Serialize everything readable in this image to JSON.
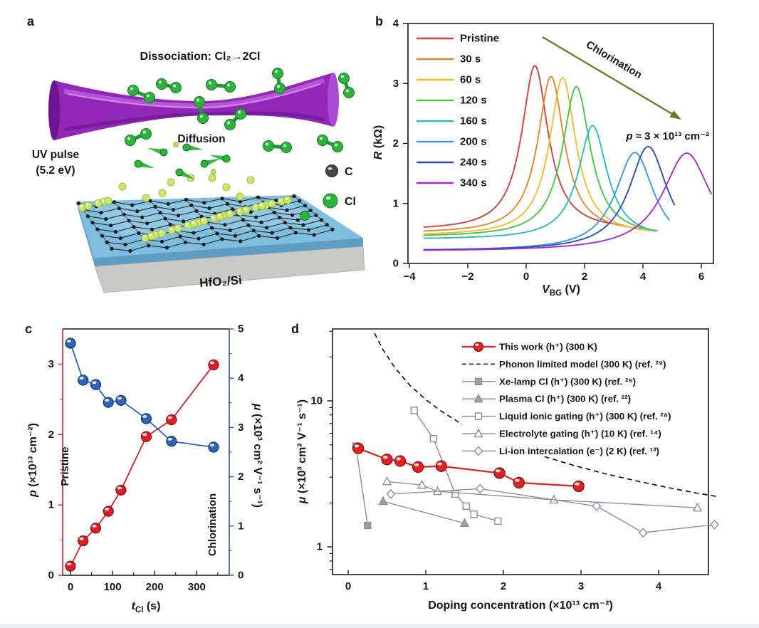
{
  "figure": {
    "background": "#ffffff",
    "ink_color": "#15151f",
    "panel_labels": {
      "a": "a",
      "b": "b",
      "c": "c",
      "d": "d"
    }
  },
  "panel_a": {
    "dissociation_label": "Dissociation: Cl₂→2Cl",
    "diffusion_label": "Diffusion",
    "uv_pulse_line1": "UV pulse",
    "uv_pulse_line2": "(5.2 eV)",
    "substrate_label": "HfO₂/Si",
    "legend": {
      "carbon": "C",
      "chlorine": "Cl"
    },
    "colors": {
      "beam": "#9227b8",
      "chlorine_green": "#2db33c",
      "adatom_green": "#cde76d",
      "substrate_blue": "#7fbede",
      "substrate_gray": "#c9c9c5"
    }
  },
  "chart_data": [
    {
      "panel": "b",
      "type": "line",
      "x_axis": {
        "label_parts": [
          {
            "t": "V",
            "i": 1
          },
          {
            "t": "BG",
            "sub": 1
          },
          {
            "t": " (V)"
          }
        ],
        "range": [
          -4,
          6.47
        ],
        "ticks": [
          -4,
          -2,
          0,
          2,
          4,
          6
        ]
      },
      "y_axis": {
        "label_parts": [
          {
            "t": "R",
            "i": 1
          },
          {
            "t": " (kΩ)"
          }
        ],
        "range": [
          0,
          4
        ],
        "ticks": [
          0,
          1,
          2,
          3,
          4
        ]
      },
      "series": [
        {
          "label": "Pristine",
          "color": "#d4403e",
          "v_dirac": 0.3,
          "r_peak": 3.3,
          "r_base": 0.55,
          "width": 0.55,
          "v_range": [
            -3.5,
            3.38
          ]
        },
        {
          "label": "30 s",
          "color": "#e8862b",
          "v_dirac": 0.85,
          "r_peak": 3.12,
          "r_base": 0.5,
          "width": 0.55,
          "v_range": [
            -3.5,
            3.97
          ]
        },
        {
          "label": "60 s",
          "color": "#f2bc35",
          "v_dirac": 1.25,
          "r_peak": 3.1,
          "r_base": 0.46,
          "width": 0.55,
          "v_range": [
            -3.5,
            4.3
          ]
        },
        {
          "label": "120 s",
          "color": "#47c83f",
          "v_dirac": 1.72,
          "r_peak": 2.95,
          "r_base": 0.44,
          "width": 0.58,
          "v_range": [
            -3.5,
            4.52
          ]
        },
        {
          "label": "160 s",
          "color": "#2fb9c4",
          "v_dirac": 2.28,
          "r_peak": 2.3,
          "r_base": 0.4,
          "width": 0.6,
          "v_range": [
            -3.5,
            4.45
          ]
        },
        {
          "label": "200 s",
          "color": "#3e97e0",
          "v_dirac": 3.72,
          "r_peak": 1.85,
          "r_base": 0.21,
          "width": 0.8,
          "v_range": [
            -3.5,
            4.95
          ]
        },
        {
          "label": "240 s",
          "color": "#2b50bd",
          "v_dirac": 4.18,
          "r_peak": 1.95,
          "r_base": 0.21,
          "width": 0.8,
          "v_range": [
            -3.5,
            5.1
          ]
        },
        {
          "label": "340 s",
          "color": "#a42cc8",
          "v_dirac": 5.5,
          "r_peak": 1.84,
          "r_base": 0.2,
          "width": 1.0,
          "v_range": [
            -3.5,
            6.35
          ]
        }
      ],
      "annotation_parts": [
        {
          "t": "p",
          "i": 1
        },
        {
          "t": " ≈ 3 × 10¹³ cm⁻²"
        }
      ],
      "arrow_label": "Chlorination",
      "arrow_color": "#5d7c20",
      "arrow_label_color": "#4fc3ab"
    },
    {
      "panel": "c",
      "type": "line",
      "x": [
        0,
        30,
        60,
        90,
        120,
        180,
        240,
        340
      ],
      "x_axis": {
        "label_parts": [
          {
            "t": "t",
            "i": 1
          },
          {
            "t": "Cl",
            "sub": 1
          },
          {
            "t": " (s)"
          }
        ],
        "range": [
          -19,
          378
        ],
        "ticks": [
          0,
          100,
          200,
          300
        ],
        "minor_ticks": [
          50,
          150,
          250,
          350
        ]
      },
      "left_axis": {
        "label_parts": [
          {
            "t": "p",
            "i": 1
          },
          {
            "t": " (×10¹³ cm⁻²)"
          }
        ],
        "range": [
          0,
          3.5
        ],
        "ticks": [
          0,
          1,
          2,
          3
        ],
        "color": "#c8202a"
      },
      "right_axis": {
        "label_parts": [
          {
            "t": "μ",
            "i": 1
          },
          {
            "t": " (×10³ cm² V⁻¹ s⁻¹)"
          }
        ],
        "range": [
          0,
          5
        ],
        "ticks": [
          0,
          1,
          2,
          3,
          4,
          5
        ],
        "color": "#2a52a8"
      },
      "series": [
        {
          "label": "p",
          "axis": "left",
          "color": "#d81f26",
          "marker_stroke": "#8e1014",
          "values": [
            0.13,
            0.49,
            0.67,
            0.91,
            1.21,
            1.97,
            2.21,
            2.99
          ]
        },
        {
          "label": "μ",
          "axis": "right",
          "color": "#2f63bb",
          "marker_stroke": "#173a75",
          "values": [
            4.71,
            3.96,
            3.87,
            3.51,
            3.55,
            3.18,
            2.72,
            2.6
          ]
        }
      ],
      "annotations": [
        {
          "text": "Pristine",
          "color": "#101018"
        },
        {
          "text": "Chlorination",
          "color": "#28a84e"
        }
      ]
    },
    {
      "panel": "d",
      "type": "scatter",
      "x_axis": {
        "label": "Doping concentration (×10¹³ cm⁻²)",
        "range": [
          -0.2,
          4.64
        ],
        "ticks": [
          0,
          1,
          2,
          3,
          4
        ]
      },
      "y_axis": {
        "label_parts": [
          {
            "t": "μ",
            "i": 1
          },
          {
            "t": " (×10³ cm² V⁻¹ s⁻¹)"
          }
        ],
        "log": true,
        "range": [
          0.645,
          31
        ],
        "ticks": [
          1,
          10
        ],
        "minor_ticks": [
          0.7,
          0.8,
          0.9,
          2,
          3,
          4,
          5,
          6,
          7,
          8,
          9,
          20,
          30
        ]
      },
      "series": [
        {
          "label": "This work (h⁺) (300 K)",
          "marker": "glossy",
          "color": "#e02322",
          "marker_stroke": "#8e1014",
          "line": "solid",
          "points": [
            [
              0.13,
              4.73
            ],
            [
              0.5,
              3.97
            ],
            [
              0.67,
              3.87
            ],
            [
              0.9,
              3.52
            ],
            [
              1.2,
              3.57
            ],
            [
              1.95,
              3.2
            ],
            [
              2.2,
              2.75
            ],
            [
              2.97,
              2.6
            ]
          ]
        },
        {
          "label": "Phonon limited model (300 K) (ref. ²⁹)",
          "marker": "none",
          "color": "#14141c",
          "line": "dashed",
          "segments": [
            [
              [
                0.34,
                29
              ],
              [
                0.45,
                22.4
              ],
              [
                0.6,
                16.9
              ],
              [
                0.8,
                12.7
              ],
              [
                1.0,
                10.2
              ],
              [
                1.2,
                8.5
              ],
              [
                1.47,
                6.9
              ]
            ],
            [
              [
                2.53,
                4.15
              ],
              [
                2.9,
                3.62
              ],
              [
                3.3,
                3.18
              ],
              [
                3.7,
                2.84
              ],
              [
                4.1,
                2.56
              ],
              [
                4.5,
                2.33
              ],
              [
                4.78,
                2.2
              ]
            ]
          ]
        },
        {
          "label": "Xe-lamp Cl (h⁺) (300 K) (ref. ²⁵)",
          "marker": "square-filled",
          "color": "#8b9094",
          "line": "solid",
          "points": [
            [
              0.1,
              4.9
            ],
            [
              0.25,
              1.4
            ]
          ]
        },
        {
          "label": "Plasma Cl (h⁺) (300 K) (ref. ²²)",
          "marker": "triangle-filled",
          "color": "#8b9094",
          "line": "solid",
          "points": [
            [
              0.45,
              2.05
            ],
            [
              1.5,
              1.45
            ]
          ]
        },
        {
          "label": "Liquid ionic gating (h⁺) (300 K) (ref. ²⁸)",
          "marker": "square-open",
          "color": "#8b9094",
          "line": "solid",
          "points": [
            [
              0.85,
              8.6
            ],
            [
              1.1,
              5.5
            ],
            [
              1.38,
              2.3
            ],
            [
              1.52,
              1.9
            ],
            [
              1.62,
              1.67
            ],
            [
              1.93,
              1.5
            ]
          ]
        },
        {
          "label": "Electrolyte gating (h⁺) (10 K) (ref. ¹⁴)",
          "marker": "triangle-open",
          "color": "#8b9094",
          "line": "solid",
          "points": [
            [
              0.5,
              2.8
            ],
            [
              0.95,
              2.65
            ],
            [
              1.15,
              2.4
            ],
            [
              2.65,
              2.1
            ],
            [
              4.5,
              1.85
            ]
          ]
        },
        {
          "label": "Li-ion intercalation (e⁻) (2 K) (ref. ¹³)",
          "marker": "diamond-open",
          "color": "#8b9094",
          "line": "solid",
          "points": [
            [
              0.55,
              2.3
            ],
            [
              1.7,
              2.5
            ],
            [
              3.2,
              1.9
            ],
            [
              3.8,
              1.25
            ],
            [
              4.72,
              1.42
            ]
          ]
        }
      ]
    }
  ]
}
